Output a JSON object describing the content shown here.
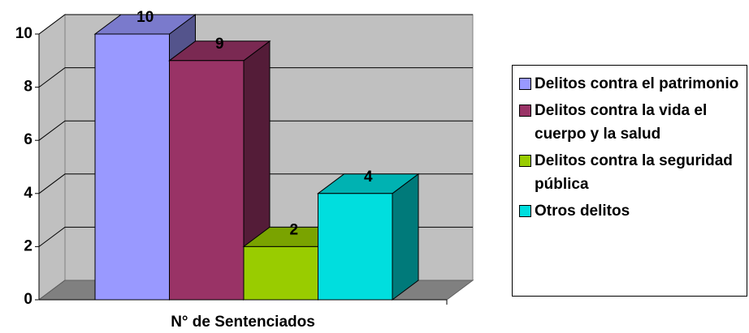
{
  "chart_data": {
    "type": "bar3d",
    "categories": [
      "N° de Sentenciados"
    ],
    "series": [
      {
        "name": "Delitos contra el patrimonio",
        "color": "#9999ff",
        "values": [
          10
        ]
      },
      {
        "name": "Delitos contra la vida el cuerpo y la salud",
        "color": "#993366",
        "values": [
          9
        ]
      },
      {
        "name": "Delitos contra la seguridad pública",
        "color": "#99cc00",
        "values": [
          2
        ]
      },
      {
        "name": "Otros delitos",
        "color": "#00dede",
        "values": [
          4
        ]
      }
    ],
    "ylim": [
      0,
      10
    ],
    "yticks": [
      0,
      2,
      4,
      6,
      8,
      10
    ],
    "grid": true,
    "legend": "right"
  }
}
